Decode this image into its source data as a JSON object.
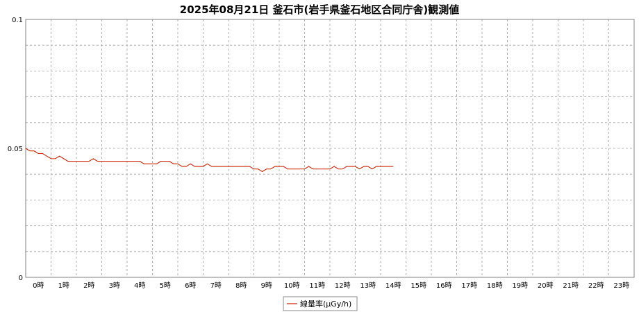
{
  "chart_data": {
    "type": "line",
    "title": "2025年08月21日 釜石市(岩手県釜石地区合同庁舎)観測値",
    "xlabel": "",
    "ylabel": "",
    "ylim": [
      0,
      0.1
    ],
    "y_ticks": [
      "0",
      "0.05",
      "0.1"
    ],
    "xlim": [
      0,
      24
    ],
    "x_ticks": [
      "0時",
      "1時",
      "2時",
      "3時",
      "4時",
      "5時",
      "6時",
      "7時",
      "8時",
      "9時",
      "10時",
      "11時",
      "12時",
      "13時",
      "14時",
      "15時",
      "16時",
      "17時",
      "18時",
      "19時",
      "20時",
      "21時",
      "22時",
      "23時"
    ],
    "grid": true,
    "legend": {
      "position": "bottom-center"
    },
    "series": [
      {
        "name": "線量率(μGy/h)",
        "color": "#cc2200",
        "interval_minutes": 10,
        "values": [
          0.05,
          0.049,
          0.049,
          0.048,
          0.048,
          0.047,
          0.046,
          0.046,
          0.047,
          0.046,
          0.045,
          0.045,
          0.045,
          0.045,
          0.045,
          0.045,
          0.046,
          0.045,
          0.045,
          0.045,
          0.045,
          0.045,
          0.045,
          0.045,
          0.045,
          0.045,
          0.045,
          0.045,
          0.044,
          0.044,
          0.044,
          0.044,
          0.045,
          0.045,
          0.045,
          0.044,
          0.044,
          0.043,
          0.043,
          0.044,
          0.043,
          0.043,
          0.043,
          0.044,
          0.043,
          0.043,
          0.043,
          0.043,
          0.043,
          0.043,
          0.043,
          0.043,
          0.043,
          0.043,
          0.042,
          0.042,
          0.041,
          0.042,
          0.042,
          0.043,
          0.043,
          0.043,
          0.042,
          0.042,
          0.042,
          0.042,
          0.042,
          0.043,
          0.042,
          0.042,
          0.042,
          0.042,
          0.042,
          0.043,
          0.042,
          0.042,
          0.043,
          0.043,
          0.043,
          0.042,
          0.043,
          0.043,
          0.042,
          0.043,
          0.043,
          0.043,
          0.043,
          0.043
        ]
      }
    ]
  }
}
